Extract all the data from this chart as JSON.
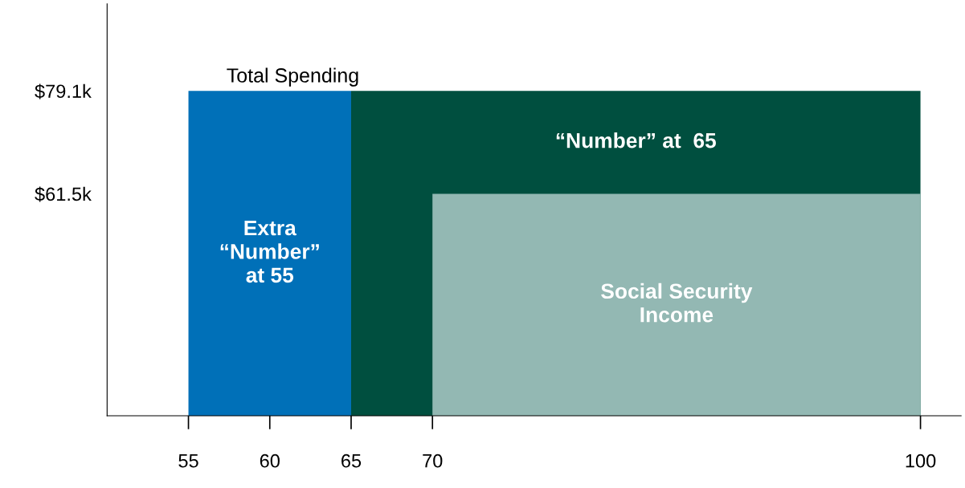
{
  "chart_data": {
    "type": "area",
    "xlim": [
      50,
      102.5
    ],
    "ylim": [
      23.5,
      94
    ],
    "xticks": [
      55,
      60,
      65,
      70,
      100
    ],
    "yticks": [
      {
        "value": 61.5,
        "label": "$61.5k"
      },
      {
        "value": 79.1,
        "label": "$79.1k"
      }
    ],
    "series": [
      {
        "name": "Extra\n“Number”\nat 55",
        "color": "#0070b8",
        "x": [
          55,
          65
        ],
        "values": [
          79.1,
          79.1
        ]
      },
      {
        "name": "“Number” at  65",
        "color": "#004f3f",
        "x": [
          65,
          100
        ],
        "values": [
          79.1,
          79.1
        ]
      },
      {
        "name": "Social Security\nIncome",
        "color": "#93b8b3",
        "x": [
          70,
          100
        ],
        "values": [
          61.5,
          61.5
        ]
      }
    ],
    "annotations": [
      "Total Spending"
    ],
    "grid": false,
    "legend": false
  }
}
